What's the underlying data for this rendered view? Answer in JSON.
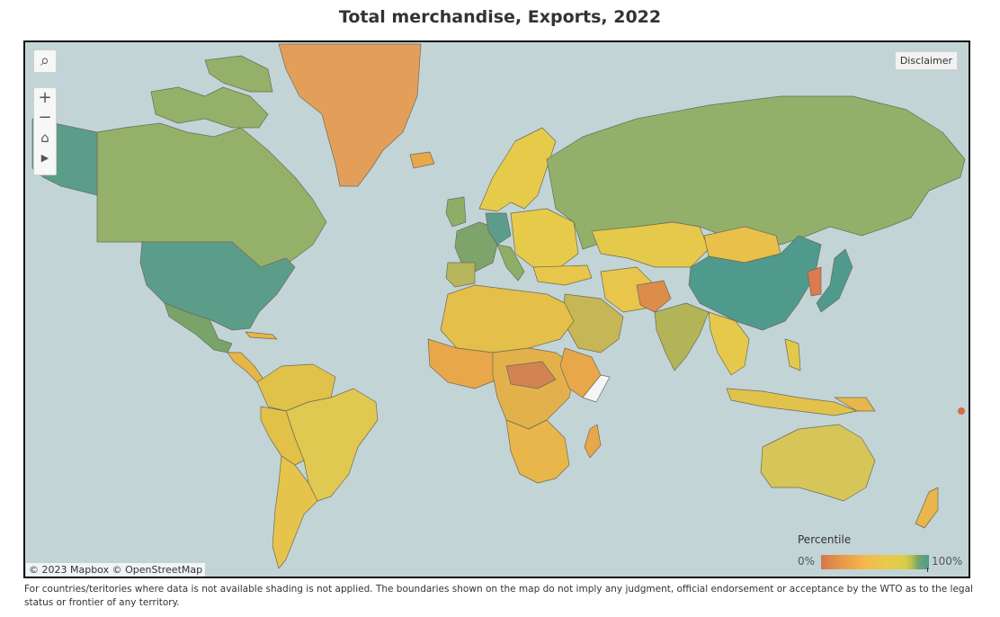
{
  "title": "Total merchandise, Exports, 2022",
  "controls": {
    "search_symbol": "⌕",
    "zoom_in": "+",
    "zoom_out": "−",
    "home_symbol": "⌂",
    "play_symbol": "▶"
  },
  "disclaimer_label": "Disclaimer",
  "attribution": "© 2023 Mapbox  © OpenStreetMap",
  "legend": {
    "title": "Percentile",
    "min_label": "0%",
    "max_label": "100%"
  },
  "footnote": "For countries/teritories where data is not available shading is not applied. The boundaries shown on the map do not imply any judgment, official endorsement or acceptance by the WTO as to the legal status or frontier of any territory.",
  "colors": {
    "ocean": "#c2d4d6",
    "low": "#d4784a",
    "mid": "#e8cb4a",
    "high": "#4f9a8c",
    "border": "#6b6b5a"
  }
}
